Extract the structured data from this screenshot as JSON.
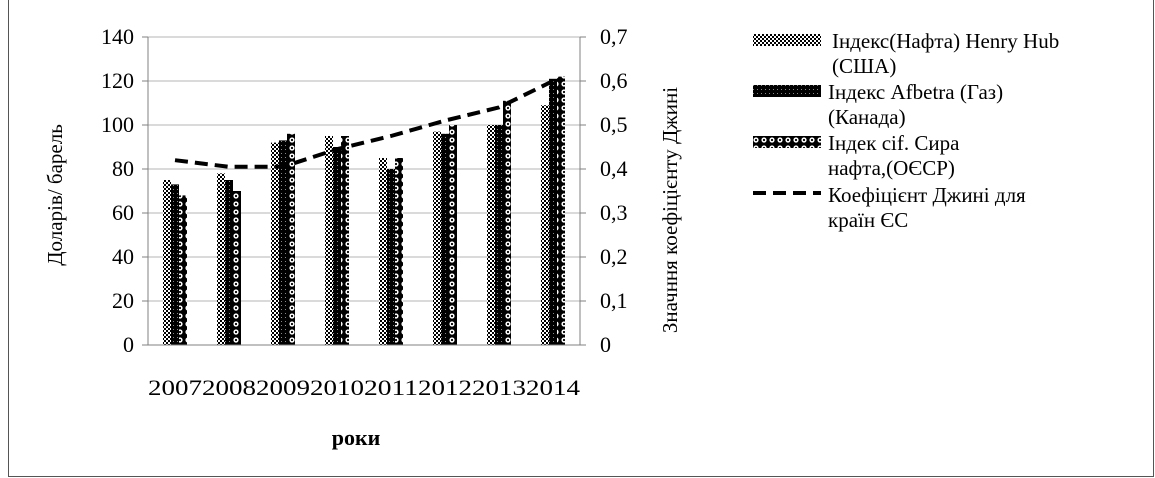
{
  "chart_data": {
    "type": "bar",
    "categories": [
      "2007",
      "2008",
      "2009",
      "2010",
      "2011",
      "2012",
      "2013",
      "2014"
    ],
    "series": [
      {
        "name": "Індекс(Нафта) Henry Hub (США)",
        "axis": "left",
        "kind": "bar",
        "pattern": "checker",
        "values": [
          75,
          78,
          92,
          95,
          85,
          97,
          100,
          109
        ]
      },
      {
        "name": "Індекс Afbetra  (Газ) (Канада)",
        "axis": "left",
        "kind": "bar",
        "pattern": "black-dots",
        "values": [
          73,
          75,
          93,
          90,
          80,
          96,
          100,
          121
        ]
      },
      {
        "name": "Індек cif. Сира нафта,(ОЄСР)",
        "axis": "left",
        "kind": "bar",
        "pattern": "circles",
        "values": [
          68,
          70,
          96,
          95,
          85,
          100,
          111,
          122
        ]
      },
      {
        "name": "Коефіцієнт Джині для країн ЄС",
        "axis": "right",
        "kind": "line",
        "style": "dashed",
        "values": [
          0.42,
          0.405,
          0.405,
          0.445,
          0.475,
          0.51,
          0.54,
          0.6
        ]
      }
    ],
    "ylabel": "Доларів/ барель",
    "y2label": "Значння коефіцієнту Джині",
    "xlabel": "роки",
    "ylim": [
      0,
      140
    ],
    "y2lim": [
      0,
      0.7
    ],
    "yticks": [
      "0",
      "20",
      "40",
      "60",
      "80",
      "100",
      "120",
      "140"
    ],
    "y2ticks": [
      "0",
      "0,1",
      "0,2",
      "0,3",
      "0,4",
      "0,5",
      "0,6",
      "0,7"
    ],
    "legend_lines": [
      [
        " Індекс(Нафта) Henry Hub",
        "(США)"
      ],
      [
        "Індекс Afbetra  (Газ)",
        "(Канада)"
      ],
      [
        "Індек cif. Сира",
        "нафта,(ОЄСР)"
      ],
      [
        "Коефіцієнт Джині для",
        "країн ЄС"
      ]
    ],
    "grid": true,
    "legend": "right"
  }
}
